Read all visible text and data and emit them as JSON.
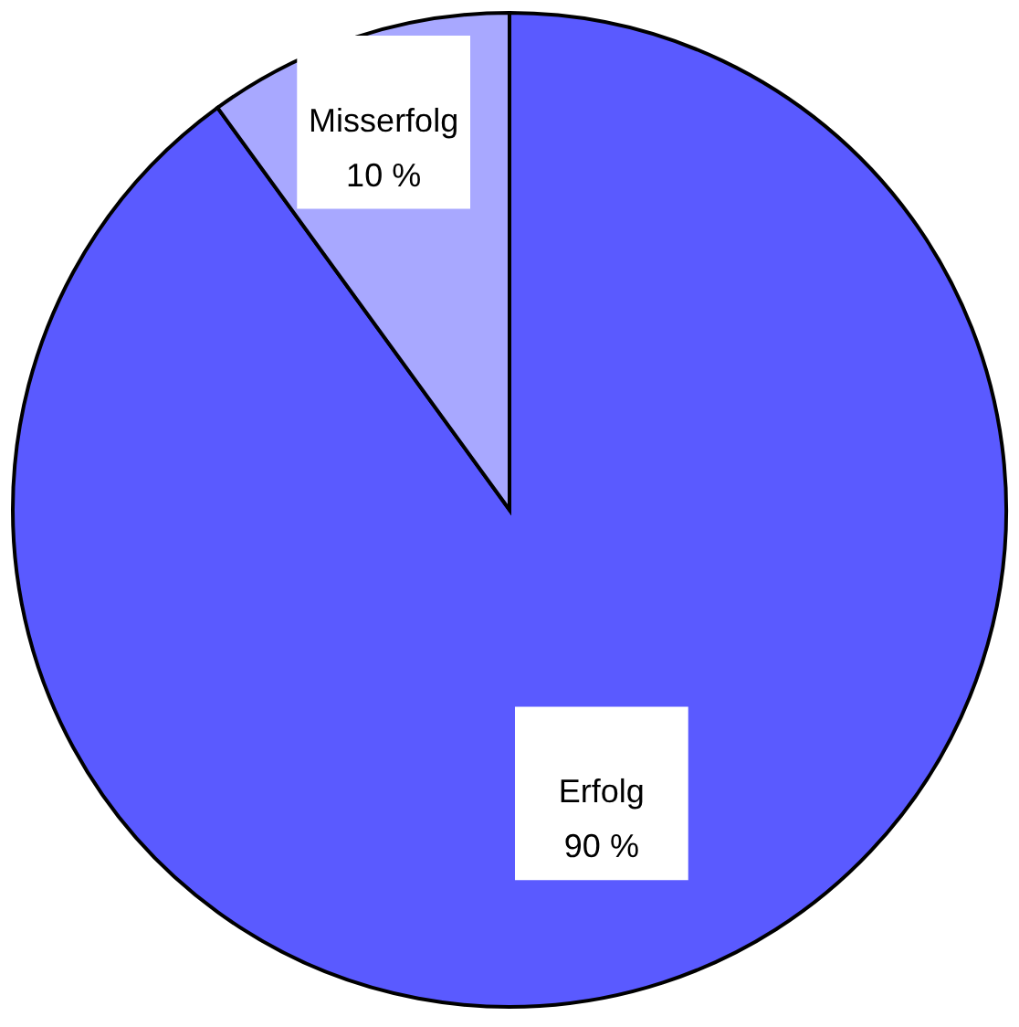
{
  "chart_data": {
    "type": "pie",
    "categories": [
      "Erfolg",
      "Misserfolg"
    ],
    "values": [
      90,
      10
    ],
    "colors": [
      "#5a5aff",
      "#a8a8ff"
    ],
    "value_labels": [
      "90 %",
      "10 %"
    ],
    "legend": false
  }
}
